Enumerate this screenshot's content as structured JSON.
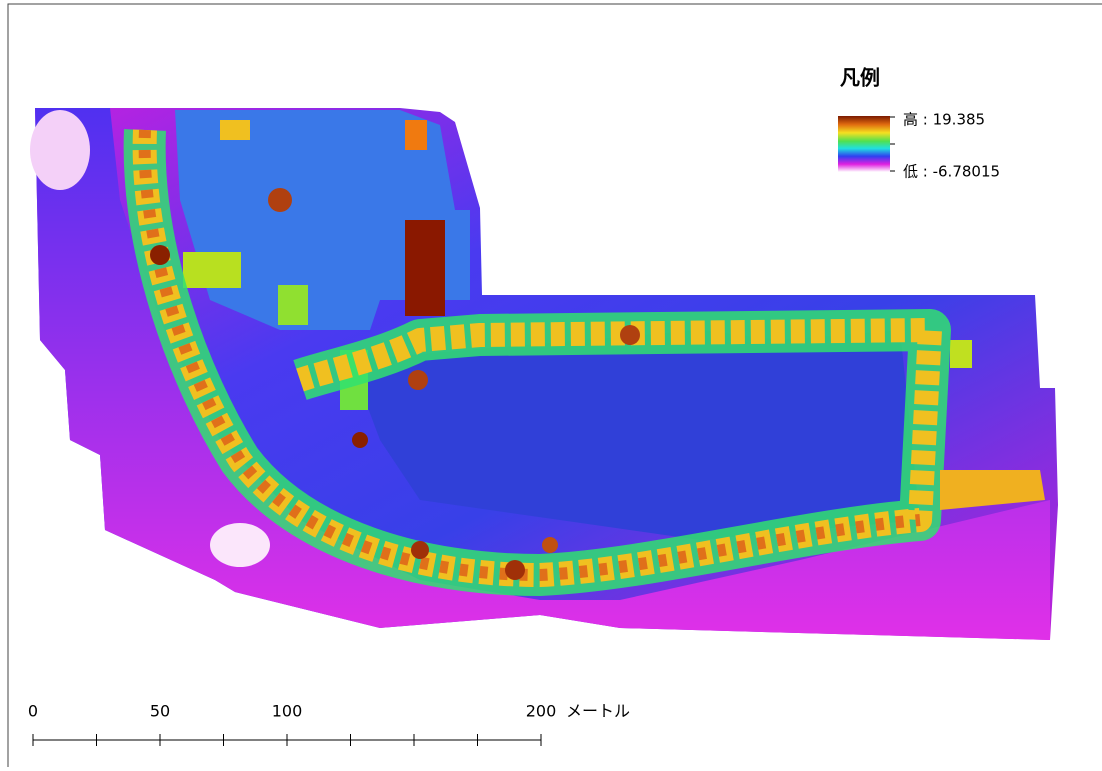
{
  "legend": {
    "title": "凡例",
    "high": "高 : 19.385",
    "low": "低 : -6.78015"
  },
  "scale_bar": {
    "labels": [
      0,
      50,
      100,
      200
    ],
    "unit": "メートル",
    "ticks": [
      0,
      25,
      50,
      75,
      100,
      125,
      150,
      175,
      200
    ],
    "range": [
      0,
      200
    ]
  }
}
